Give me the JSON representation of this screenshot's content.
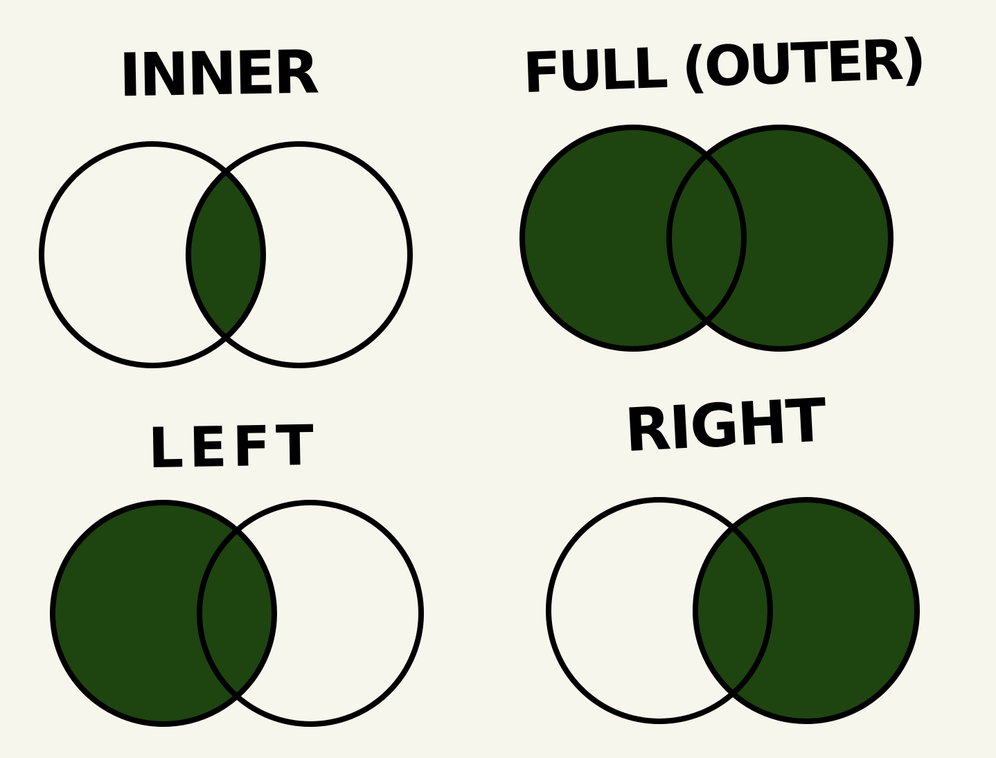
{
  "colors": {
    "background": "#f6f6ec",
    "fill": "#1e4410",
    "stroke": "#000000"
  },
  "diagrams": [
    {
      "label": "INNER",
      "left_filled": false,
      "intersection_filled": true,
      "right_filled": false
    },
    {
      "label": "FULL (OUTER)",
      "left_filled": true,
      "intersection_filled": true,
      "right_filled": true
    },
    {
      "label": "LEFT",
      "left_filled": true,
      "intersection_filled": true,
      "right_filled": false
    },
    {
      "label": "RIGHT",
      "left_filled": false,
      "intersection_filled": true,
      "right_filled": true
    }
  ]
}
